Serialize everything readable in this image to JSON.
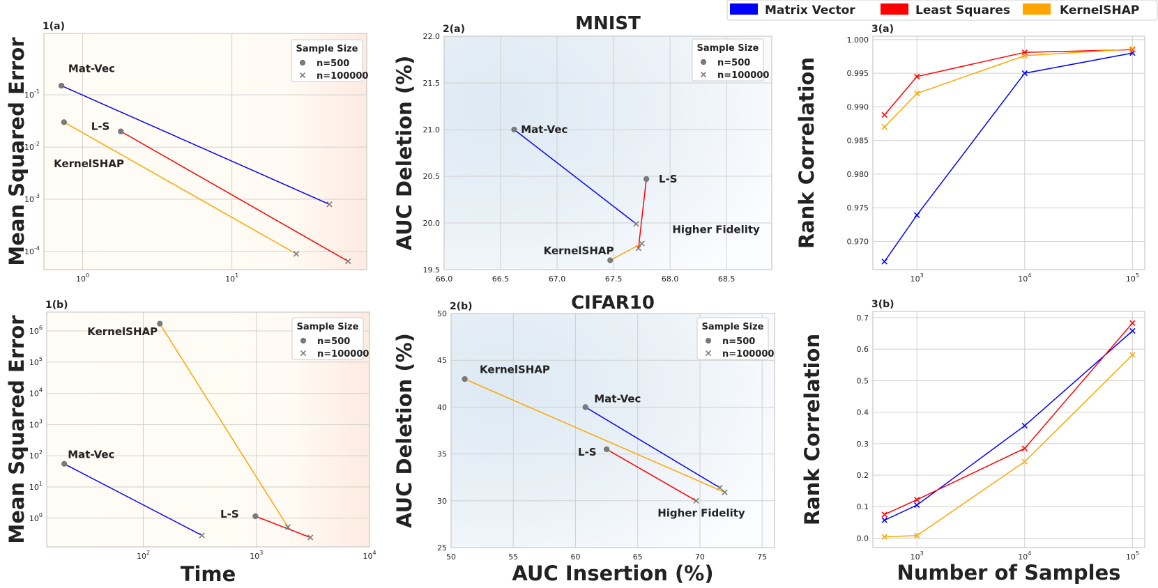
{
  "legend": {
    "items": [
      {
        "label": "Matrix Vector",
        "color": "#0000ff"
      },
      {
        "label": "Least Squares",
        "color": "#ff0000"
      },
      {
        "label": "KernelSHAP",
        "color": "#ffa500"
      }
    ]
  },
  "sample_legend": {
    "title": "Sample Size",
    "n500": "n=500",
    "n100000": "n=100000"
  },
  "chart_data": [
    {
      "id": "p1a",
      "panel_label": "1(a)",
      "type": "scatter",
      "xscale": "log",
      "yscale": "log",
      "xlim": [
        0.55,
        80
      ],
      "ylim": [
        4.5e-05,
        1.5
      ],
      "xticks": [
        {
          "v": 1,
          "t": "10",
          "e": "0"
        },
        {
          "v": 10,
          "t": "10",
          "e": "1"
        }
      ],
      "yticks": [
        {
          "v": 0.0001,
          "t": "10",
          "e": "-4"
        },
        {
          "v": 0.001,
          "t": "10",
          "e": "-3"
        },
        {
          "v": 0.01,
          "t": "10",
          "e": "-2"
        },
        {
          "v": 0.1,
          "t": "10",
          "e": "-1"
        }
      ],
      "ylabel": "Mean Squared Error",
      "xlabel": "",
      "title": "",
      "theme": "time",
      "series": [
        {
          "name": "Mat-Vec",
          "color": "#0000ff",
          "x": [
            0.72,
            45
          ],
          "y": [
            0.15,
            0.0008
          ]
        },
        {
          "name": "L-S",
          "color": "#ff0000",
          "x": [
            1.8,
            60
          ],
          "y": [
            0.02,
            6.5e-05
          ]
        },
        {
          "name": "KernelSHAP",
          "color": "#ffa500",
          "x": [
            0.75,
            27
          ],
          "y": [
            0.03,
            9e-05
          ]
        }
      ],
      "annotations": [
        {
          "text": "Mat-Vec",
          "x": 0.8,
          "y": 0.32,
          "anchor": "start"
        },
        {
          "text": "L-S",
          "x": 1.14,
          "y": 0.025,
          "anchor": "start"
        },
        {
          "text": "KernelSHAP",
          "x": 0.64,
          "y": 0.0048,
          "anchor": "start"
        }
      ]
    },
    {
      "id": "p1b",
      "panel_label": "1(b)",
      "type": "scatter",
      "xscale": "log",
      "yscale": "log",
      "xlim": [
        14,
        10000
      ],
      "ylim": [
        0.12,
        4000000
      ],
      "xticks": [
        {
          "v": 100,
          "t": "10",
          "e": "2"
        },
        {
          "v": 1000,
          "t": "10",
          "e": "3"
        },
        {
          "v": 10000,
          "t": "10",
          "e": "4"
        }
      ],
      "yticks": [
        {
          "v": 1,
          "t": "10",
          "e": "0"
        },
        {
          "v": 10,
          "t": "10",
          "e": "1"
        },
        {
          "v": 100,
          "t": "10",
          "e": "2"
        },
        {
          "v": 1000,
          "t": "10",
          "e": "3"
        },
        {
          "v": 10000,
          "t": "10",
          "e": "4"
        },
        {
          "v": 100000,
          "t": "10",
          "e": "5"
        },
        {
          "v": 1000000,
          "t": "10",
          "e": "6"
        }
      ],
      "ylabel": "Mean Squared Error",
      "xlabel": "Time",
      "title": "",
      "theme": "time",
      "series": [
        {
          "name": "Mat-Vec",
          "color": "#0000ff",
          "x": [
            20,
            330
          ],
          "y": [
            55,
            0.28
          ]
        },
        {
          "name": "L-S",
          "color": "#ff0000",
          "x": [
            980,
            3000
          ],
          "y": [
            1.15,
            0.24
          ]
        },
        {
          "name": "KernelSHAP",
          "color": "#ffa500",
          "x": [
            140,
            1900
          ],
          "y": [
            1700000,
            0.52
          ]
        }
      ],
      "annotations": [
        {
          "text": "Mat-Vec",
          "x": 21.5,
          "y": 110,
          "anchor": "start"
        },
        {
          "text": "L-S",
          "x": 480,
          "y": 1.35,
          "anchor": "start"
        },
        {
          "text": "KernelSHAP",
          "x": 32,
          "y": 950000,
          "anchor": "start"
        }
      ]
    },
    {
      "id": "p2a",
      "panel_label": "2(a)",
      "type": "scatter",
      "xscale": "linear",
      "yscale": "linear",
      "xlim": [
        66.0,
        68.9
      ],
      "ylim": [
        19.5,
        22.0
      ],
      "xticks": [
        {
          "v": 66.0,
          "t": "66.0"
        },
        {
          "v": 66.5,
          "t": "66.5"
        },
        {
          "v": 67.0,
          "t": "67.0"
        },
        {
          "v": 67.5,
          "t": "67.5"
        },
        {
          "v": 68.0,
          "t": "68.0"
        },
        {
          "v": 68.5,
          "t": "68.5"
        }
      ],
      "yticks": [
        {
          "v": 19.5,
          "t": "19.5"
        },
        {
          "v": 20.0,
          "t": "20.0"
        },
        {
          "v": 20.5,
          "t": "20.5"
        },
        {
          "v": 21.0,
          "t": "21.0"
        },
        {
          "v": 21.5,
          "t": "21.5"
        },
        {
          "v": 22.0,
          "t": "22.0"
        }
      ],
      "ylabel": "AUC Deletion (%)",
      "xlabel": "",
      "title": "MNIST",
      "theme": "fidelity",
      "series": [
        {
          "name": "Mat-Vec",
          "color": "#0000ff",
          "x": [
            66.62,
            67.7
          ],
          "y": [
            21.0,
            19.99
          ]
        },
        {
          "name": "L-S",
          "color": "#ff0000",
          "x": [
            67.79,
            67.72
          ],
          "y": [
            20.47,
            19.73
          ]
        },
        {
          "name": "KernelSHAP",
          "color": "#ffa500",
          "x": [
            67.47,
            67.75
          ],
          "y": [
            19.6,
            19.78
          ]
        }
      ],
      "annotations": [
        {
          "text": "Mat-Vec",
          "x": 66.68,
          "y": 21.0,
          "anchor": "start"
        },
        {
          "text": "L-S",
          "x": 67.9,
          "y": 20.47,
          "anchor": "start"
        },
        {
          "text": "KernelSHAP",
          "x": 66.88,
          "y": 19.7,
          "anchor": "start"
        },
        {
          "text": "Higher Fidelity",
          "x": 68.02,
          "y": 19.93,
          "anchor": "start"
        }
      ]
    },
    {
      "id": "p2b",
      "panel_label": "2(b)",
      "type": "scatter",
      "xscale": "linear",
      "yscale": "linear",
      "xlim": [
        50,
        76
      ],
      "ylim": [
        25,
        50
      ],
      "xticks": [
        {
          "v": 50,
          "t": "50"
        },
        {
          "v": 55,
          "t": "55"
        },
        {
          "v": 60,
          "t": "60"
        },
        {
          "v": 65,
          "t": "65"
        },
        {
          "v": 70,
          "t": "70"
        },
        {
          "v": 75,
          "t": "75"
        }
      ],
      "yticks": [
        {
          "v": 25,
          "t": "25"
        },
        {
          "v": 30,
          "t": "30"
        },
        {
          "v": 35,
          "t": "35"
        },
        {
          "v": 40,
          "t": "40"
        },
        {
          "v": 45,
          "t": "45"
        },
        {
          "v": 50,
          "t": "50"
        }
      ],
      "ylabel": "AUC Deletion (%)",
      "xlabel": "AUC Insertion (%)",
      "title": "CIFAR10",
      "theme": "fidelity",
      "series": [
        {
          "name": "Mat-Vec",
          "color": "#0000ff",
          "x": [
            60.8,
            71.6
          ],
          "y": [
            40.0,
            31.4
          ]
        },
        {
          "name": "L-S",
          "color": "#ff0000",
          "x": [
            62.5,
            69.7
          ],
          "y": [
            35.5,
            30.0
          ]
        },
        {
          "name": "KernelSHAP",
          "color": "#ffa500",
          "x": [
            51.1,
            72.0
          ],
          "y": [
            43.0,
            30.9
          ]
        }
      ],
      "annotations": [
        {
          "text": "KernelSHAP",
          "x": 52.3,
          "y": 44.0,
          "anchor": "start"
        },
        {
          "text": "Mat-Vec",
          "x": 61.5,
          "y": 40.9,
          "anchor": "start"
        },
        {
          "text": "L-S",
          "x": 60.2,
          "y": 35.2,
          "anchor": "start"
        },
        {
          "text": "Higher Fidelity",
          "x": 66.6,
          "y": 28.7,
          "anchor": "start"
        }
      ]
    },
    {
      "id": "p3a",
      "panel_label": "3(a)",
      "type": "line",
      "xscale": "log",
      "yscale": "linear",
      "xlim": [
        390,
        130000
      ],
      "ylim": [
        0.9658,
        1.0005
      ],
      "xticks": [
        {
          "v": 1000,
          "t": "10",
          "e": "3"
        },
        {
          "v": 10000,
          "t": "10",
          "e": "4"
        },
        {
          "v": 100000,
          "t": "10",
          "e": "5"
        }
      ],
      "yticks": [
        {
          "v": 0.97,
          "t": "0.970"
        },
        {
          "v": 0.975,
          "t": "0.975"
        },
        {
          "v": 0.98,
          "t": "0.980"
        },
        {
          "v": 0.985,
          "t": "0.985"
        },
        {
          "v": 0.99,
          "t": "0.990"
        },
        {
          "v": 0.995,
          "t": "0.995"
        },
        {
          "v": 1.0,
          "t": "1.000"
        }
      ],
      "ylabel": "Rank Correlation",
      "xlabel": "",
      "title": "",
      "theme": "plain",
      "series": [
        {
          "name": "Matrix Vector",
          "color": "#0000ff",
          "x": [
            500,
            1000,
            10000,
            100000
          ],
          "y": [
            0.967,
            0.9739,
            0.995,
            0.998
          ]
        },
        {
          "name": "Least Squares",
          "color": "#ff0000",
          "x": [
            500,
            1000,
            10000,
            100000
          ],
          "y": [
            0.9888,
            0.9945,
            0.9981,
            0.9985
          ]
        },
        {
          "name": "KernelSHAP",
          "color": "#ffa500",
          "x": [
            500,
            1000,
            10000,
            100000
          ],
          "y": [
            0.987,
            0.992,
            0.9976,
            0.9986
          ]
        }
      ],
      "annotations": []
    },
    {
      "id": "p3b",
      "panel_label": "3(b)",
      "type": "line",
      "xscale": "log",
      "yscale": "linear",
      "xlim": [
        390,
        130000
      ],
      "ylim": [
        -0.03,
        0.72
      ],
      "xticks": [
        {
          "v": 1000,
          "t": "10",
          "e": "3"
        },
        {
          "v": 10000,
          "t": "10",
          "e": "4"
        },
        {
          "v": 100000,
          "t": "10",
          "e": "5"
        }
      ],
      "yticks": [
        {
          "v": 0.0,
          "t": "0.0"
        },
        {
          "v": 0.1,
          "t": "0.1"
        },
        {
          "v": 0.2,
          "t": "0.2"
        },
        {
          "v": 0.3,
          "t": "0.3"
        },
        {
          "v": 0.4,
          "t": "0.4"
        },
        {
          "v": 0.5,
          "t": "0.5"
        },
        {
          "v": 0.6,
          "t": "0.6"
        },
        {
          "v": 0.7,
          "t": "0.7"
        }
      ],
      "ylabel": "Rank Correlation",
      "xlabel": "Number of Samples",
      "title": "",
      "theme": "plain",
      "series": [
        {
          "name": "Matrix Vector",
          "color": "#0000ff",
          "x": [
            500,
            1000,
            10000,
            100000
          ],
          "y": [
            0.057,
            0.105,
            0.357,
            0.658
          ]
        },
        {
          "name": "Least Squares",
          "color": "#ff0000",
          "x": [
            500,
            1000,
            10000,
            100000
          ],
          "y": [
            0.075,
            0.122,
            0.285,
            0.683
          ]
        },
        {
          "name": "KernelSHAP",
          "color": "#ffa500",
          "x": [
            500,
            1000,
            10000,
            100000
          ],
          "y": [
            0.004,
            0.008,
            0.243,
            0.582
          ]
        }
      ],
      "annotations": []
    }
  ]
}
